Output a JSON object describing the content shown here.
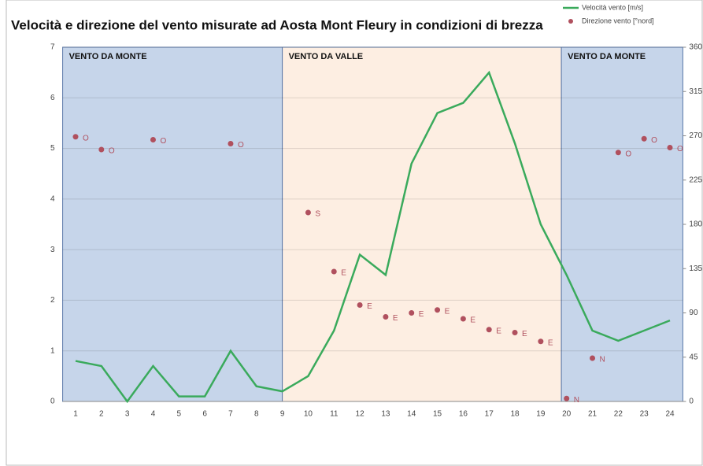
{
  "chart_data": {
    "type": "line",
    "title": "Velocità e direzione del vento misurate ad Aosta Mont Fleury in condizioni di brezza",
    "categories": [
      1,
      2,
      3,
      4,
      5,
      6,
      7,
      8,
      9,
      10,
      11,
      12,
      13,
      14,
      15,
      16,
      17,
      18,
      19,
      20,
      21,
      22,
      23,
      24
    ],
    "series": [
      {
        "name": "Velocità vento [m/s]",
        "color": "#3aaa5c",
        "kind": "line",
        "values": [
          0.8,
          0.7,
          0,
          0.7,
          0.1,
          0.1,
          1.0,
          0.3,
          0.2,
          0.5,
          1.4,
          2.9,
          2.5,
          4.7,
          5.7,
          5.9,
          6.5,
          5.1,
          3.5,
          2.5,
          1.4,
          1.2,
          1.4,
          1.6
        ]
      },
      {
        "name": "Direzione vento [°nord]",
        "color": "#b0505e",
        "kind": "scatter",
        "axis": "y2",
        "values": [
          269,
          256,
          null,
          266,
          null,
          null,
          262,
          null,
          null,
          192,
          132,
          98,
          86,
          90,
          93,
          84,
          73,
          70,
          61,
          3,
          44,
          253,
          267,
          258
        ],
        "point_labels": [
          "O",
          "O",
          null,
          "O",
          null,
          null,
          "O",
          null,
          null,
          "S",
          "E",
          "E",
          "E",
          "E",
          "E",
          "E",
          "E",
          "E",
          "E",
          "N",
          "N",
          "O",
          "O",
          "O"
        ]
      }
    ],
    "regions": [
      {
        "label": "VENTO  DA MONTE",
        "from": 0.5,
        "to": 9,
        "color": "#c6d5ea"
      },
      {
        "label": "VENTO  DA VALLE",
        "from": 9,
        "to": 19.8,
        "color": "#fdeee2"
      },
      {
        "label": "VENTO  DA MONTE",
        "from": 19.8,
        "to": 24.5,
        "color": "#c6d5ea"
      }
    ],
    "ylim": [
      0,
      7
    ],
    "yticks": [
      0,
      1,
      2,
      3,
      4,
      5,
      6,
      7
    ],
    "y2lim": [
      0,
      360
    ],
    "y2ticks": [
      0,
      45,
      90,
      135,
      180,
      225,
      270,
      315,
      360
    ],
    "grid": true,
    "legend": "top-right"
  }
}
